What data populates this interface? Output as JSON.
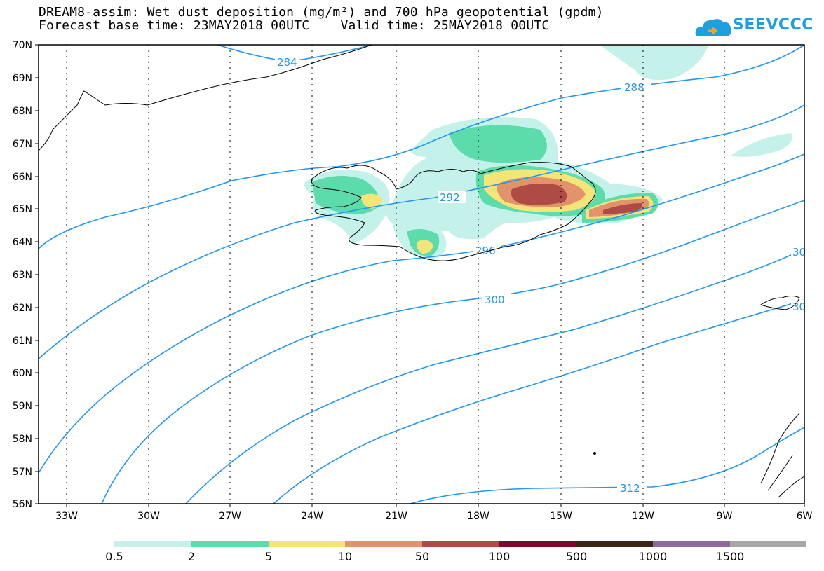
{
  "title": {
    "line1": "DREAM8-assim: Wet dust deposition (mg/m²) and 700 hPa geopotential (gpdm)",
    "line2": "Forecast base time: 23MAY2018 00UTC    Valid time: 25MAY2018 00UTC"
  },
  "logo": {
    "text": "SEEVCCC",
    "icon": "cloud-icon"
  },
  "map": {
    "lat_labels": [
      "70N",
      "69N",
      "68N",
      "67N",
      "66N",
      "65N",
      "64N",
      "63N",
      "62N",
      "61N",
      "60N",
      "59N",
      "58N",
      "57N",
      "56N"
    ],
    "lon_labels": [
      "33W",
      "30W",
      "27W",
      "24W",
      "21W",
      "18W",
      "15W",
      "12W",
      "9W",
      "6W"
    ],
    "lat_range": [
      56,
      70
    ],
    "lon_range": [
      -34.2,
      -6
    ],
    "grid": "dotted"
  },
  "contours": {
    "variable": "700 hPa geopotential",
    "color": "#2196f3",
    "labels": [
      "284",
      "288",
      "292",
      "296",
      "300",
      "30",
      "30",
      "312"
    ]
  },
  "colorbar": {
    "labels": [
      "0.5",
      "2",
      "5",
      "10",
      "50",
      "100",
      "500",
      "1000",
      "1500"
    ],
    "colors": [
      "#c4f2ea",
      "#5cdcaa",
      "#f5e477",
      "#e3936b",
      "#ad4b44",
      "#7d0a2a",
      "#3b2415",
      "#8c6aa0",
      "#a8a8a8"
    ]
  }
}
